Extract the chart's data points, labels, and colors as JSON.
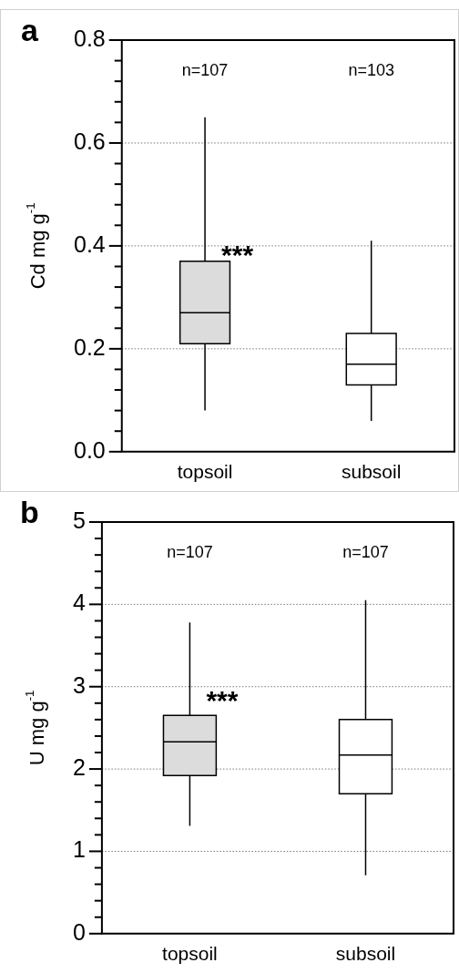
{
  "chart_data": [
    {
      "type": "box",
      "title": "a",
      "ylabel": "Cd mg g$^{-1}$",
      "categories": [
        "topsoil",
        "subsoil"
      ],
      "colors": [
        "#dcdcdc",
        "#ffffff"
      ],
      "boxes": [
        {
          "low": 0.08,
          "q1": 0.21,
          "median": 0.27,
          "q3": 0.37,
          "high": 0.65
        },
        {
          "low": 0.06,
          "q1": 0.13,
          "median": 0.17,
          "q3": 0.23,
          "high": 0.41
        }
      ],
      "ylim": [
        0,
        0.8
      ],
      "yticks": [
        {
          "value": 0,
          "label": "0.0"
        },
        {
          "value": 0.04,
          "label": null
        },
        {
          "value": 0.08,
          "label": null
        },
        {
          "value": 0.12,
          "label": null
        },
        {
          "value": 0.16,
          "label": null
        },
        0.2,
        {
          "value": 0.24,
          "label": null
        },
        {
          "value": 0.28,
          "label": null
        },
        {
          "value": 0.32,
          "label": null
        },
        {
          "value": 0.36,
          "label": null
        },
        0.4,
        {
          "value": 0.44,
          "label": null
        },
        {
          "value": 0.48,
          "label": null
        },
        {
          "value": 0.52,
          "label": null
        },
        {
          "value": 0.56,
          "label": null
        },
        0.6,
        {
          "value": 0.64,
          "label": null
        },
        {
          "value": 0.68,
          "label": null
        },
        {
          "value": 0.72,
          "label": null
        },
        {
          "value": 0.76,
          "label": null
        },
        0.8
      ],
      "grid": "y",
      "annotations": [
        "n=107",
        "n=103",
        {
          "text": "***",
          "x": "topsoil",
          "y": 0.39
        }
      ]
    },
    {
      "type": "box",
      "title": "b",
      "ylabel": "U mg g$^{-1}$",
      "categories": [
        "topsoil",
        "subsoil"
      ],
      "colors": [
        "#dcdcdc",
        "#ffffff"
      ],
      "boxes": [
        {
          "low": 1.31,
          "q1": 1.92,
          "median": 2.33,
          "q3": 2.65,
          "high": 3.78
        },
        {
          "low": 0.71,
          "q1": 1.7,
          "median": 2.17,
          "q3": 2.6,
          "high": 4.05
        }
      ],
      "ylim": [
        0,
        5
      ],
      "yticks": [
        0,
        {
          "value": 0.2,
          "label": null
        },
        {
          "value": 0.4,
          "label": null
        },
        {
          "value": 0.6,
          "label": null
        },
        {
          "value": 0.8,
          "label": null
        },
        1,
        {
          "value": 1.2,
          "label": null
        },
        {
          "value": 1.4,
          "label": null
        },
        {
          "value": 1.6,
          "label": null
        },
        {
          "value": 1.8,
          "label": null
        },
        2,
        {
          "value": 2.2,
          "label": null
        },
        {
          "value": 2.4,
          "label": null
        },
        {
          "value": 2.6,
          "label": null
        },
        {
          "value": 2.8,
          "label": null
        },
        3,
        {
          "value": 3.2,
          "label": null
        },
        {
          "value": 3.4,
          "label": null
        },
        {
          "value": 3.6,
          "label": null
        },
        {
          "value": 3.8,
          "label": null
        },
        4,
        {
          "value": 4.2,
          "label": null
        },
        {
          "value": 4.4,
          "label": null
        },
        {
          "value": 4.6,
          "label": null
        },
        {
          "value": 4.8,
          "label": null
        },
        5
      ],
      "grid": "y",
      "annotations": [
        "n=107",
        "n=107",
        {
          "text": "***",
          "x": "topsoil",
          "y": 2.88
        }
      ]
    }
  ]
}
